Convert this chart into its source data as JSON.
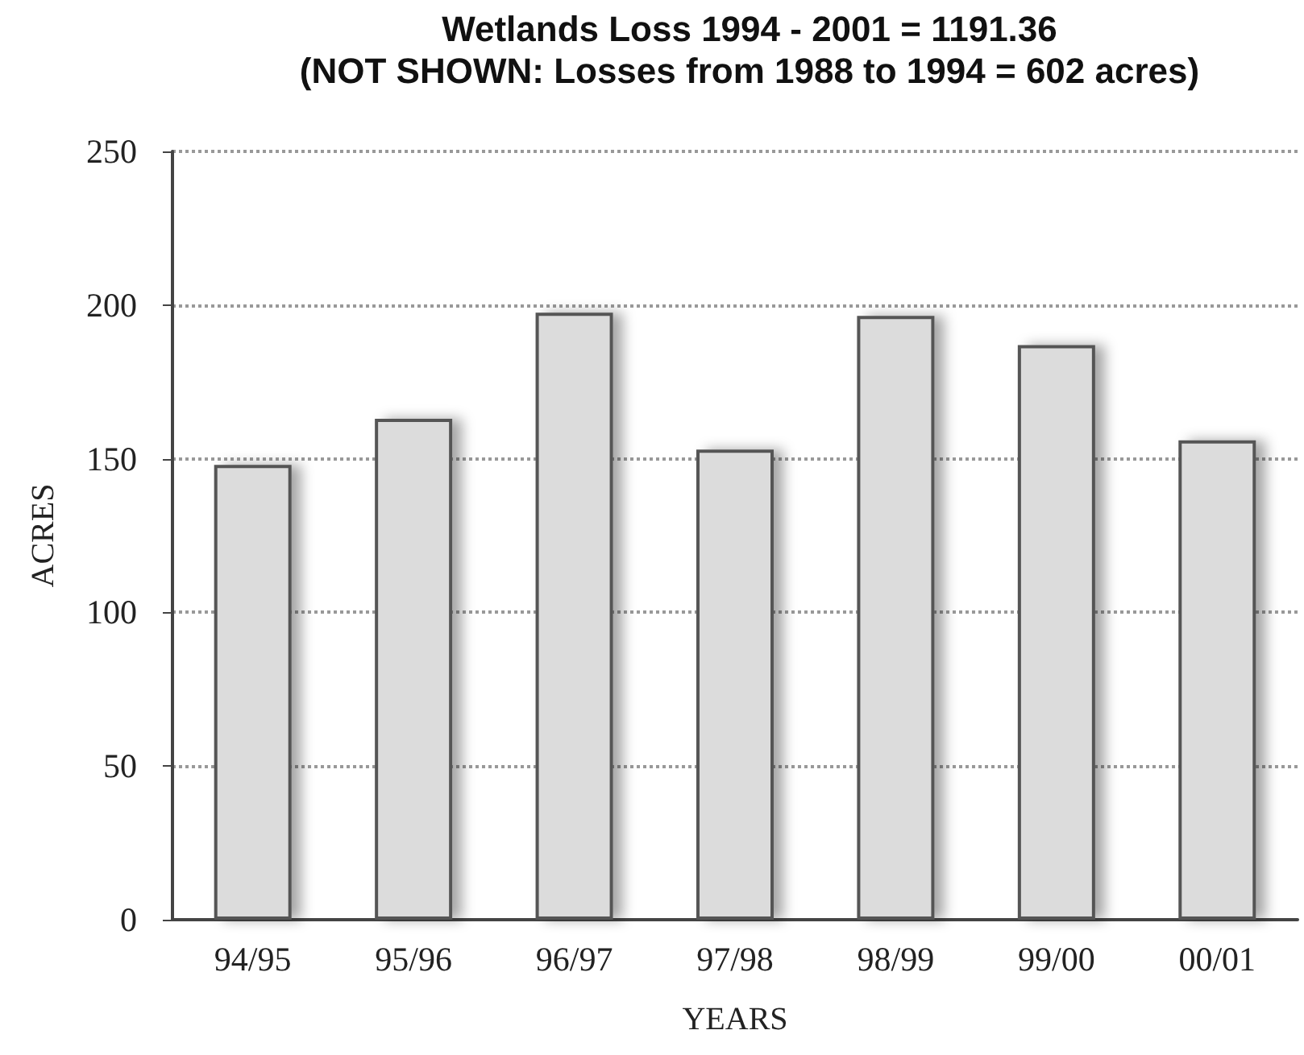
{
  "chart_data": {
    "type": "bar",
    "title": "Wetlands Loss 1994 - 2001 = 1191.36",
    "subtitle": "(NOT SHOWN: Losses from 1988 to 1994 = 602 acres)",
    "xlabel": "YEARS",
    "ylabel": "ACRES",
    "categories": [
      "94/95",
      "95/96",
      "96/97",
      "97/98",
      "98/99",
      "99/00",
      "00/01"
    ],
    "values": [
      148,
      163,
      197.5,
      153,
      196.5,
      187,
      156
    ],
    "color": "#dcdcdc",
    "ylim": [
      0,
      250
    ],
    "yticks": [
      0,
      50,
      100,
      150,
      200,
      250
    ],
    "grid": "y"
  }
}
